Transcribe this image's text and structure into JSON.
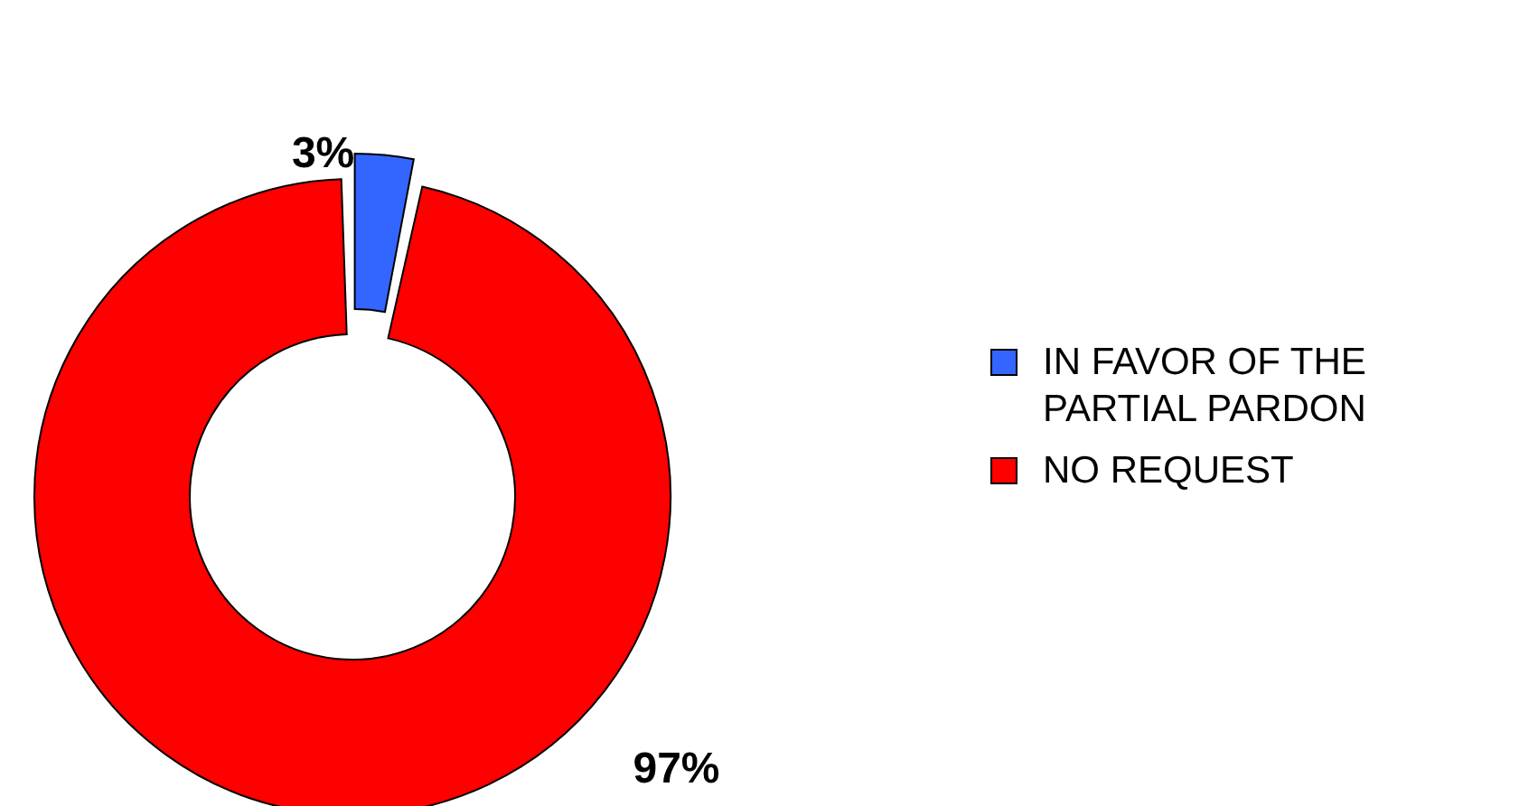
{
  "chart_data": {
    "type": "donut",
    "categories": [
      "IN FAVOR OF THE PARTIAL PARDON",
      "NO REQUEST"
    ],
    "values": [
      3,
      97
    ],
    "colors": [
      "#3366ff",
      "#ff0000"
    ],
    "value_labels": [
      "3%",
      "97%"
    ],
    "legend": "right"
  }
}
